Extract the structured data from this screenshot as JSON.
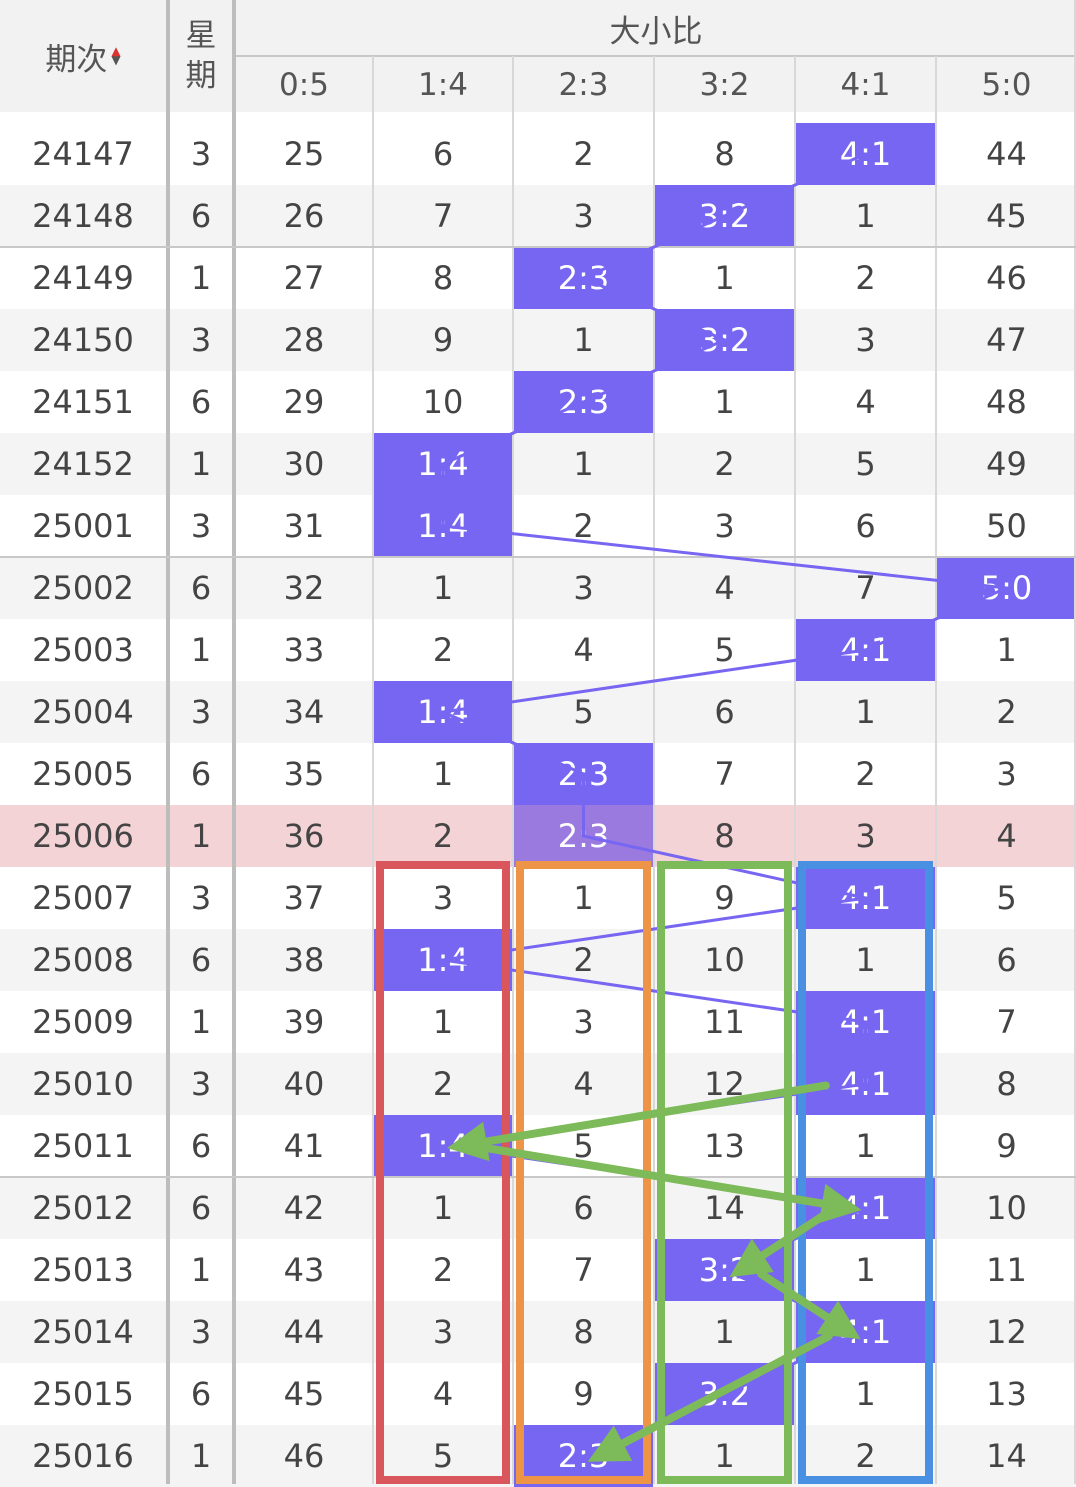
{
  "header": {
    "period_label": "期次",
    "weekday_label_top": "星",
    "weekday_label_bottom": "期",
    "group_label": "大小比",
    "columns": [
      "0:5",
      "1:4",
      "2:3",
      "3:2",
      "4:1",
      "5:0"
    ]
  },
  "rows": [
    {
      "period": "24147",
      "weekday": "3",
      "cells": [
        "25",
        "6",
        "2",
        "8",
        "4:1",
        "44"
      ],
      "hit": 4
    },
    {
      "period": "24148",
      "weekday": "6",
      "cells": [
        "26",
        "7",
        "3",
        "3:2",
        "1",
        "45"
      ],
      "hit": 3
    },
    {
      "period": "24149",
      "weekday": "1",
      "cells": [
        "27",
        "8",
        "2:3",
        "1",
        "2",
        "46"
      ],
      "hit": 2
    },
    {
      "period": "24150",
      "weekday": "3",
      "cells": [
        "28",
        "9",
        "1",
        "3:2",
        "3",
        "47"
      ],
      "hit": 3
    },
    {
      "period": "24151",
      "weekday": "6",
      "cells": [
        "29",
        "10",
        "2:3",
        "1",
        "4",
        "48"
      ],
      "hit": 2
    },
    {
      "period": "24152",
      "weekday": "1",
      "cells": [
        "30",
        "1:4",
        "1",
        "2",
        "5",
        "49"
      ],
      "hit": 1
    },
    {
      "period": "25001",
      "weekday": "3",
      "cells": [
        "31",
        "1:4",
        "2",
        "3",
        "6",
        "50"
      ],
      "hit": 1
    },
    {
      "period": "25002",
      "weekday": "6",
      "cells": [
        "32",
        "1",
        "3",
        "4",
        "7",
        "5:0"
      ],
      "hit": 5
    },
    {
      "period": "25003",
      "weekday": "1",
      "cells": [
        "33",
        "2",
        "4",
        "5",
        "4:1",
        "1"
      ],
      "hit": 4
    },
    {
      "period": "25004",
      "weekday": "3",
      "cells": [
        "34",
        "1:4",
        "5",
        "6",
        "1",
        "2"
      ],
      "hit": 1
    },
    {
      "period": "25005",
      "weekday": "6",
      "cells": [
        "35",
        "1",
        "2:3",
        "7",
        "2",
        "3"
      ],
      "hit": 2
    },
    {
      "period": "25006",
      "weekday": "1",
      "cells": [
        "36",
        "2",
        "2:3",
        "8",
        "3",
        "4"
      ],
      "hit": 2,
      "highlighted": true
    },
    {
      "period": "25007",
      "weekday": "3",
      "cells": [
        "37",
        "3",
        "1",
        "9",
        "4:1",
        "5"
      ],
      "hit": 4
    },
    {
      "period": "25008",
      "weekday": "6",
      "cells": [
        "38",
        "1:4",
        "2",
        "10",
        "1",
        "6"
      ],
      "hit": 1
    },
    {
      "period": "25009",
      "weekday": "1",
      "cells": [
        "39",
        "1",
        "3",
        "11",
        "4:1",
        "7"
      ],
      "hit": 4
    },
    {
      "period": "25010",
      "weekday": "3",
      "cells": [
        "40",
        "2",
        "4",
        "12",
        "4:1",
        "8"
      ],
      "hit": 4
    },
    {
      "period": "25011",
      "weekday": "6",
      "cells": [
        "41",
        "1:4",
        "5",
        "13",
        "1",
        "9"
      ],
      "hit": 1
    },
    {
      "period": "25012",
      "weekday": "6",
      "cells": [
        "42",
        "1",
        "6",
        "14",
        "4:1",
        "10"
      ],
      "hit": 4
    },
    {
      "period": "25013",
      "weekday": "1",
      "cells": [
        "43",
        "2",
        "7",
        "3:2",
        "1",
        "11"
      ],
      "hit": 3
    },
    {
      "period": "25014",
      "weekday": "3",
      "cells": [
        "44",
        "3",
        "8",
        "1",
        "4:1",
        "12"
      ],
      "hit": 4
    },
    {
      "period": "25015",
      "weekday": "6",
      "cells": [
        "45",
        "4",
        "9",
        "3:2",
        "1",
        "13"
      ],
      "hit": 3
    },
    {
      "period": "25016",
      "weekday": "1",
      "cells": [
        "46",
        "5",
        "2:3",
        "1",
        "2",
        "14"
      ],
      "hit": 2
    }
  ],
  "colors": {
    "hit_fill": "#7766f2",
    "trend_line": "#7766f2",
    "highlight_row": "#f3d3d6",
    "alt_row": "#f4f4f4",
    "sort_up": "#e03030",
    "sort_down": "#555555",
    "annotation_boxes": [
      "#d9565c",
      "#ee9447",
      "#7dba5a",
      "#4a90e2"
    ],
    "annotation_arrows": "#7dba5a"
  },
  "annotations": {
    "boxed_columns": [
      "1:4",
      "2:3",
      "3:2",
      "4:1"
    ],
    "arrow_path_periods": [
      "25010",
      "25011",
      "25012",
      "25013",
      "25014",
      "25016"
    ]
  }
}
